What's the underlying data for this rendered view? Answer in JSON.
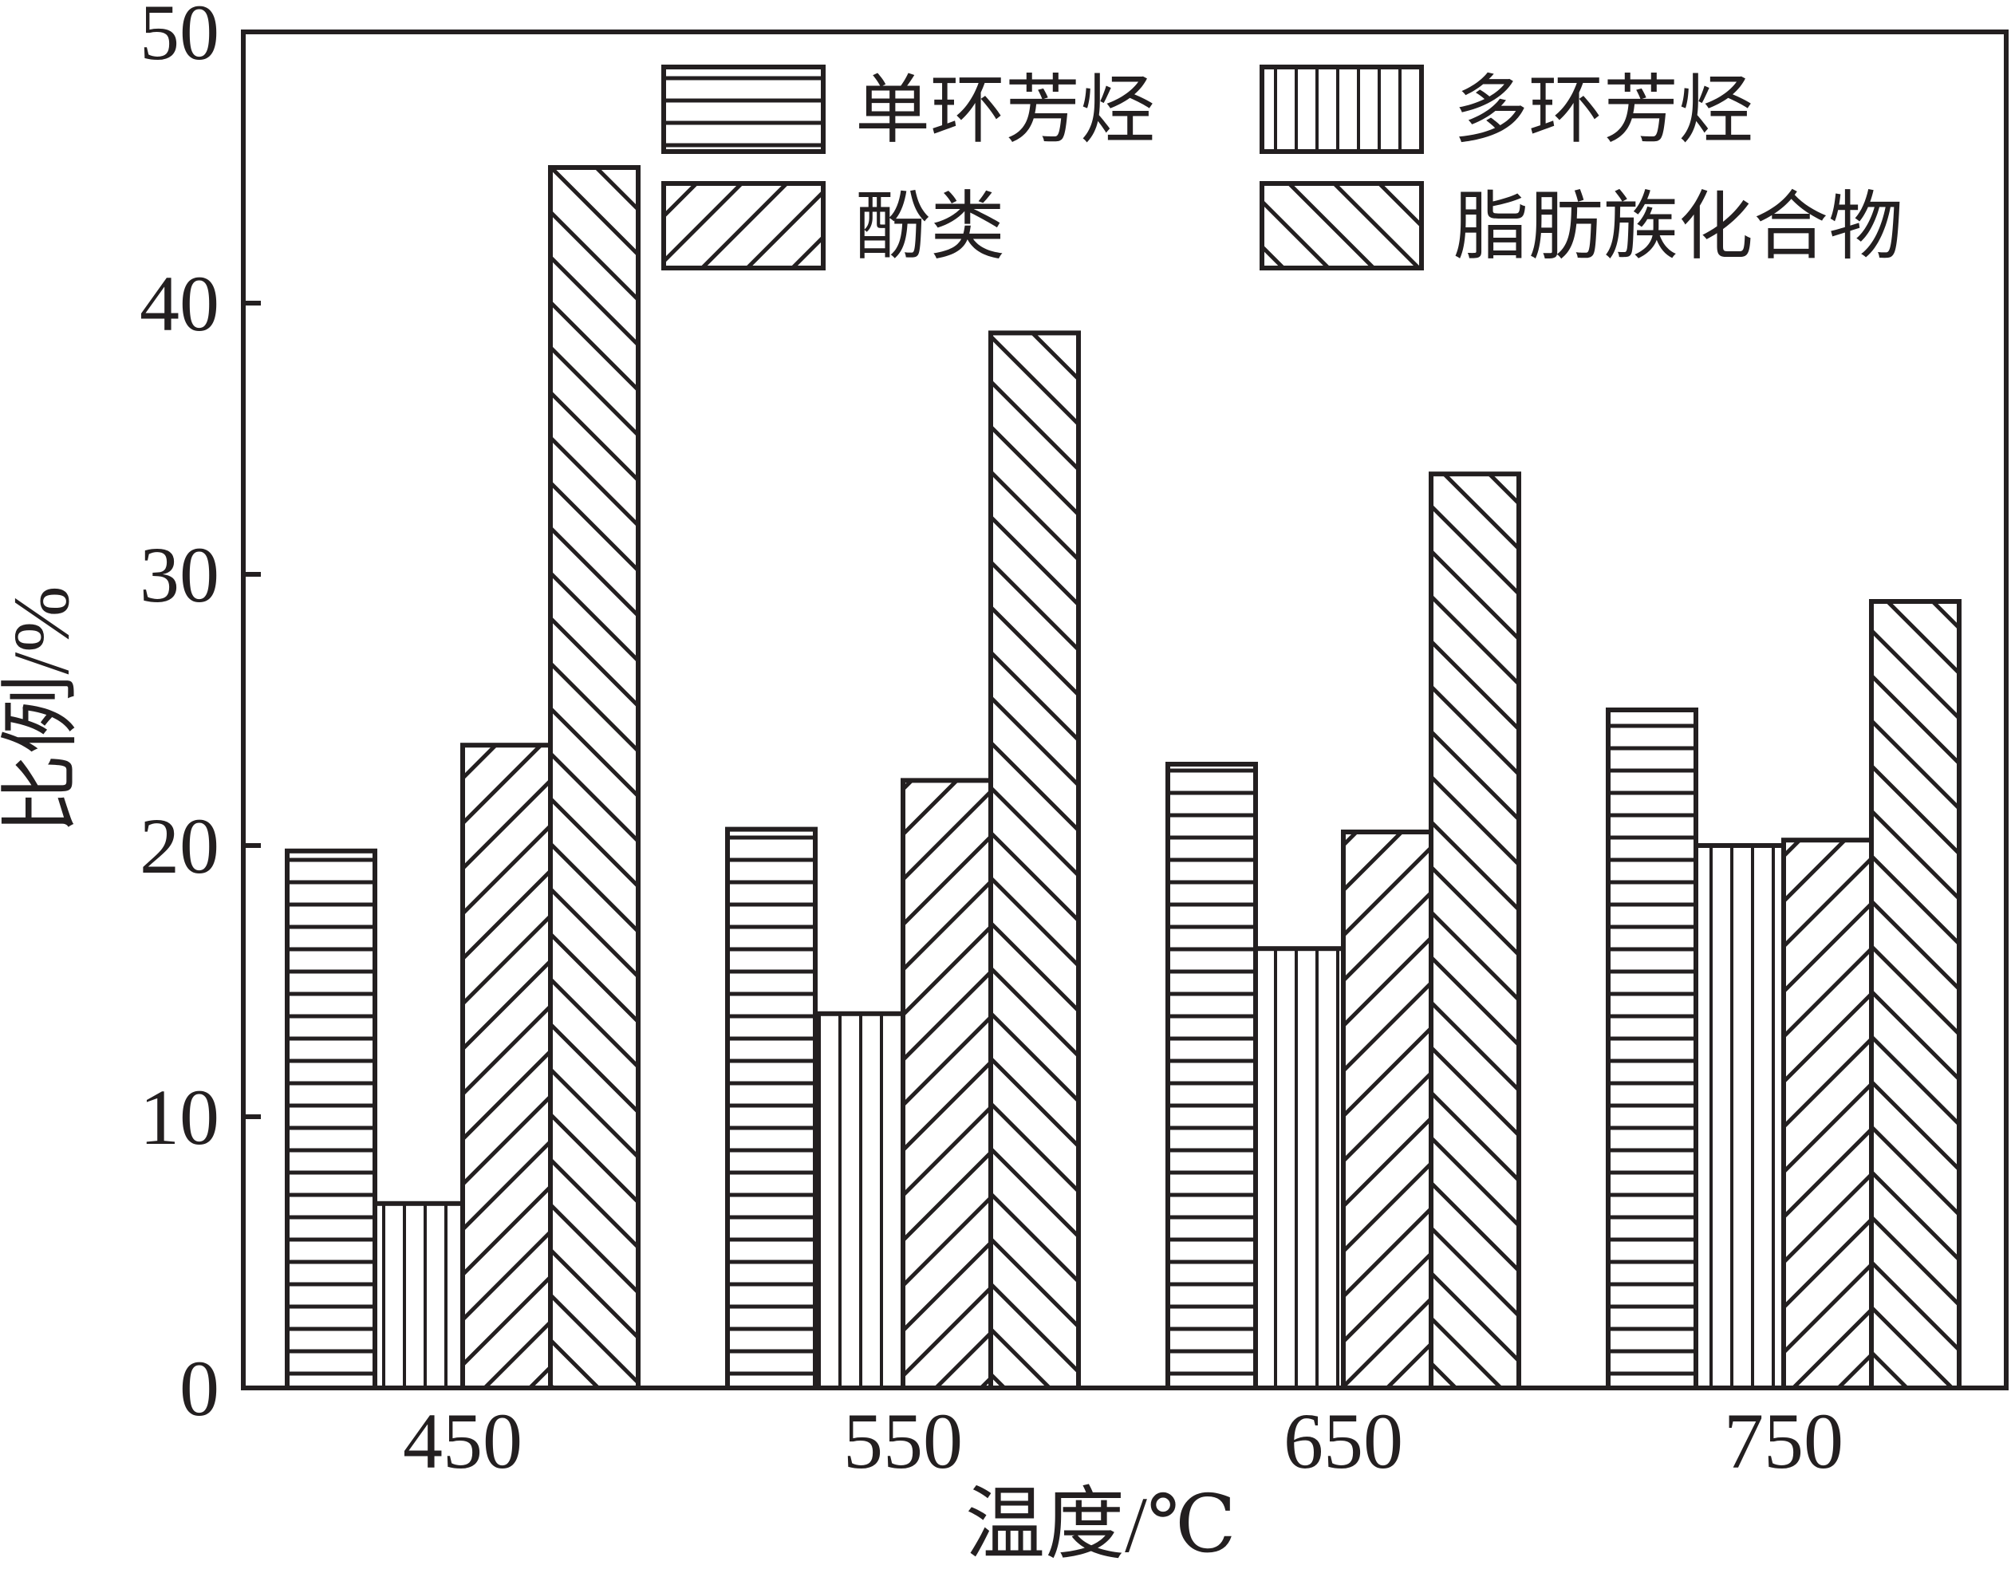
{
  "chart_data": {
    "type": "bar",
    "xlabel": "温度/℃",
    "ylabel": "比例/%",
    "categories": [
      "450",
      "550",
      "650",
      "750"
    ],
    "ylim": [
      0,
      50
    ],
    "yticks": [
      "0",
      "10",
      "20",
      "30",
      "40",
      "50"
    ],
    "grid": false,
    "legend_position": "top-right",
    "series": [
      {
        "name": "单环芳烃",
        "values": [
          19.8,
          20.6,
          23.0,
          25.0
        ],
        "pattern": "horizontal-lines"
      },
      {
        "name": "多环芳烃",
        "values": [
          6.8,
          13.8,
          16.2,
          20.0
        ],
        "pattern": "vertical-lines"
      },
      {
        "name": "酚类",
        "values": [
          23.7,
          22.4,
          20.5,
          20.2
        ],
        "pattern": "backslash-hatch"
      },
      {
        "name": "脂肪族化合物",
        "values": [
          45.0,
          38.9,
          33.7,
          29.0
        ],
        "pattern": "slash-hatch"
      }
    ],
    "colors": {
      "ink": "#231f20",
      "fill": "#ffffff"
    }
  }
}
